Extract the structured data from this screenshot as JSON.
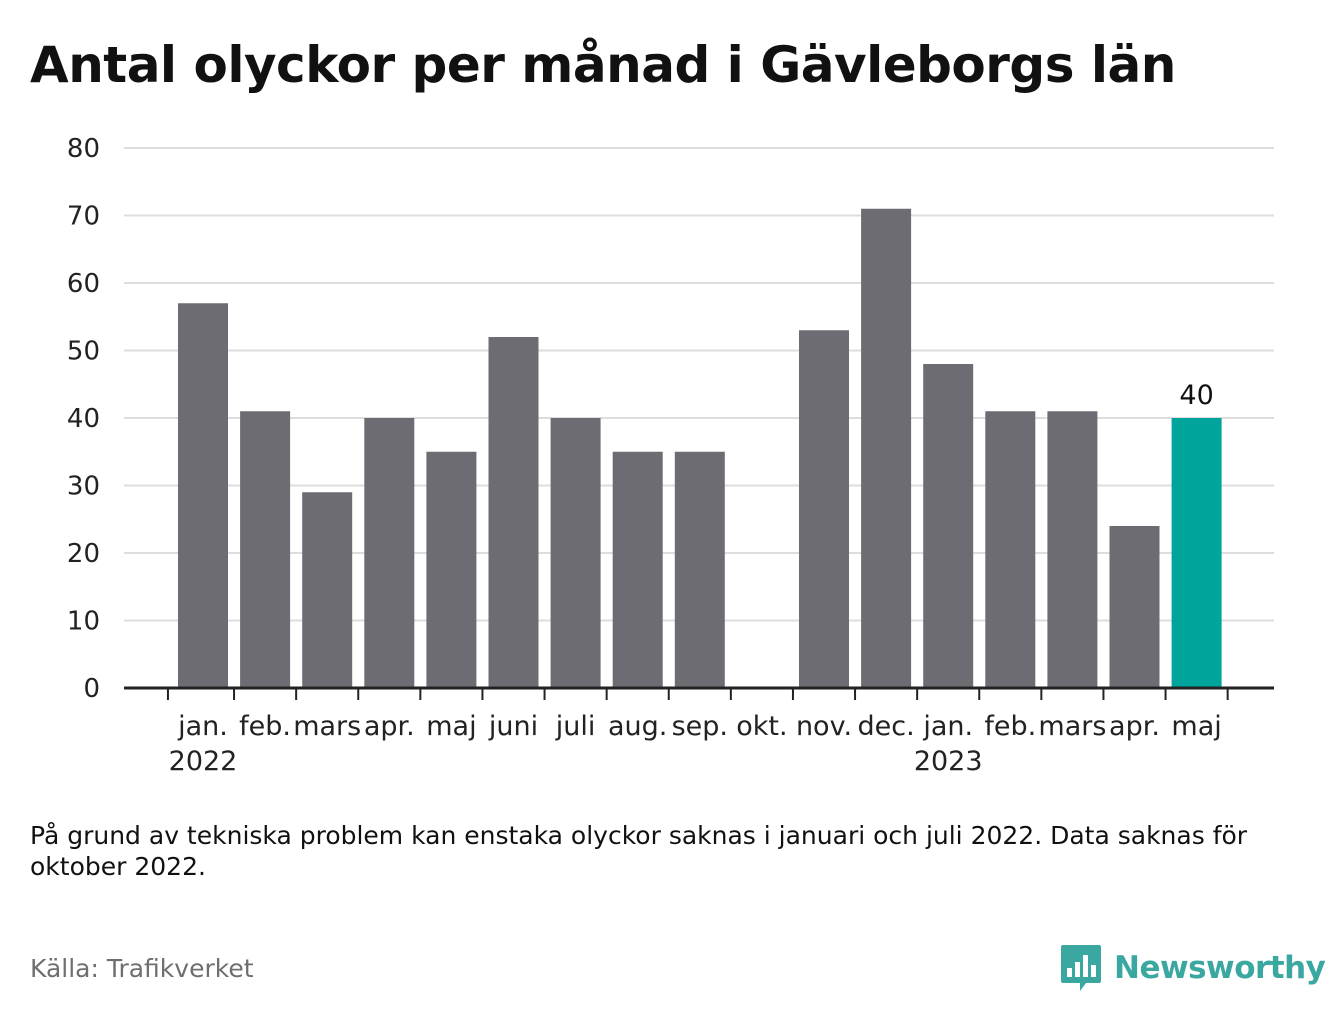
{
  "title": "Antal olyckor per månad i Gävleborgs län",
  "note": "På grund av tekniska problem kan enstaka olyckor saknas i januari och juli 2022. Data saknas för oktober 2022.",
  "source": "Källa: Trafikverket",
  "brand": {
    "name": "Newsworthy",
    "color": "#3aa7a0"
  },
  "colors": {
    "bar": "#6d6c72",
    "highlight": "#00a49b",
    "grid": "#dddddd",
    "axis": "#222222"
  },
  "chart_data": {
    "type": "bar",
    "title": "Antal olyckor per månad i Gävleborgs län",
    "xlabel": "",
    "ylabel": "",
    "ylim": [
      0,
      80
    ],
    "yticks": [
      0,
      10,
      20,
      30,
      40,
      50,
      60,
      70,
      80
    ],
    "grid": true,
    "categories": [
      "jan.",
      "feb.",
      "mars",
      "apr.",
      "maj",
      "juni",
      "juli",
      "aug.",
      "sep.",
      "okt.",
      "nov.",
      "dec.",
      "jan.",
      "feb.",
      "mars",
      "apr.",
      "maj"
    ],
    "year_labels": [
      {
        "index": 0,
        "label": "2022"
      },
      {
        "index": 12,
        "label": "2023"
      }
    ],
    "values": [
      57,
      41,
      29,
      40,
      35,
      52,
      40,
      35,
      35,
      null,
      53,
      71,
      48,
      41,
      41,
      24,
      40
    ],
    "highlight_index": 16,
    "data_labels": [
      {
        "index": 16,
        "label": "40"
      }
    ]
  }
}
